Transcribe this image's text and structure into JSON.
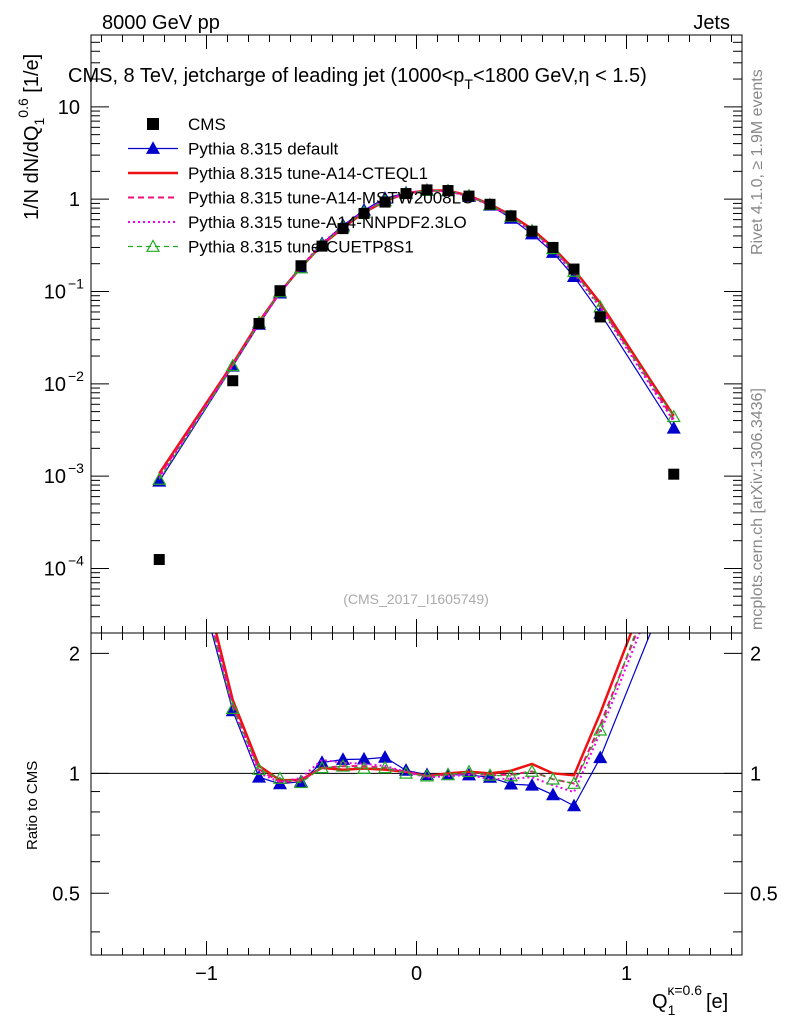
{
  "header": {
    "energy_label": "8000 GeV pp",
    "process_label": "Jets"
  },
  "side_labels": {
    "rivet": "Rivet 4.1.0, ≥ 1.9M events",
    "mcplots": "mcplots.cern.ch [arXiv:1306.3436]"
  },
  "chart_data": {
    "type": "scatter",
    "title": "CMS, 8 TeV, jetcharge of leading jet (1000<p",
    "title_sub": "T",
    "title_tail": "<1800 GeV,η < 1.5)",
    "watermark": "(CMS_2017_I1605749)",
    "xlabel": "Q",
    "xlabel_sub": "1",
    "xlabel_sup": "κ=0.6",
    "xlabel_unit": "[e]",
    "ylabel": "1/N dN/dQ",
    "ylabel_sub": "1",
    "ylabel_sup": "0.6",
    "ylabel_unit": "[1/e]",
    "ratio_ylabel": "Ratio to CMS",
    "xlim": [
      -1.55,
      1.55
    ],
    "ylim_main": [
      2e-05,
      60
    ],
    "ylim_ratio": [
      0.35,
      2.25
    ],
    "x_ticks": [
      -1,
      0,
      1
    ],
    "x_tick_labels": [
      "−1",
      "0",
      "1"
    ],
    "y_ticks_main": [
      0.0001,
      0.001,
      0.01,
      0.1,
      1,
      10
    ],
    "y_tick_labels_main": [
      {
        "base": "10",
        "exp": "−4"
      },
      {
        "base": "10",
        "exp": "−3"
      },
      {
        "base": "10",
        "exp": "−2"
      },
      {
        "base": "10",
        "exp": "−1"
      },
      {
        "base": "1",
        "exp": ""
      },
      {
        "base": "10",
        "exp": ""
      }
    ],
    "y_ticks_ratio": [
      0.5,
      1,
      2
    ],
    "y_tick_labels_ratio": [
      "0.5",
      "1",
      "2"
    ],
    "x": [
      -1.225,
      -0.875,
      -0.75,
      -0.65,
      -0.55,
      -0.45,
      -0.35,
      -0.25,
      -0.15,
      -0.05,
      0.05,
      0.15,
      0.25,
      0.35,
      0.45,
      0.55,
      0.65,
      0.75,
      0.875,
      1.225
    ],
    "series": [
      {
        "name": "CMS",
        "style": "data",
        "color": "#000000",
        "values": [
          0.000125,
          0.0108,
          0.045,
          0.102,
          0.19,
          0.31,
          0.48,
          0.7,
          0.93,
          1.15,
          1.26,
          1.24,
          1.08,
          0.88,
          0.66,
          0.45,
          0.3,
          0.175,
          0.053,
          0.00105
        ]
      },
      {
        "name": "Pythia 8.315 default",
        "style": "solid-triangle",
        "color": "#0000cc",
        "values": [
          0.00088,
          0.0155,
          0.044,
          0.096,
          0.181,
          0.33,
          0.52,
          0.76,
          1.02,
          1.17,
          1.25,
          1.23,
          1.07,
          0.86,
          0.62,
          0.42,
          0.265,
          0.145,
          0.058,
          0.0033
        ]
      },
      {
        "name": "Pythia 8.315 tune-A14-CTEQL1",
        "style": "solid-thick",
        "color": "#ee1111",
        "values": [
          0.00107,
          0.0165,
          0.047,
          0.098,
          0.183,
          0.32,
          0.49,
          0.72,
          0.95,
          1.16,
          1.24,
          1.24,
          1.09,
          0.88,
          0.67,
          0.475,
          0.3,
          0.173,
          0.075,
          0.0045
        ]
      },
      {
        "name": "Pythia 8.315 tune-A14-MSTW2008LO",
        "style": "dashed",
        "color": "#ee1177",
        "values": [
          0.001,
          0.016,
          0.046,
          0.097,
          0.182,
          0.32,
          0.5,
          0.73,
          0.96,
          1.16,
          1.24,
          1.23,
          1.08,
          0.87,
          0.655,
          0.455,
          0.29,
          0.165,
          0.07,
          0.0041
        ]
      },
      {
        "name": "Pythia 8.315 tune-A14-NNPDF2.3LO",
        "style": "dotted",
        "color": "#ee00ee",
        "values": [
          0.00095,
          0.0158,
          0.045,
          0.097,
          0.185,
          0.335,
          0.51,
          0.74,
          0.97,
          1.16,
          1.23,
          1.22,
          1.07,
          0.85,
          0.64,
          0.44,
          0.28,
          0.157,
          0.067,
          0.0039
        ]
      },
      {
        "name": "Pythia 8.315 tune-CUETP8S1",
        "style": "dashed-triangle",
        "color": "#22aa22",
        "values": [
          0.00092,
          0.0157,
          0.046,
          0.099,
          0.18,
          0.32,
          0.5,
          0.72,
          0.96,
          1.15,
          1.24,
          1.23,
          1.09,
          0.87,
          0.65,
          0.455,
          0.29,
          0.165,
          0.068,
          0.0044
        ]
      }
    ]
  }
}
